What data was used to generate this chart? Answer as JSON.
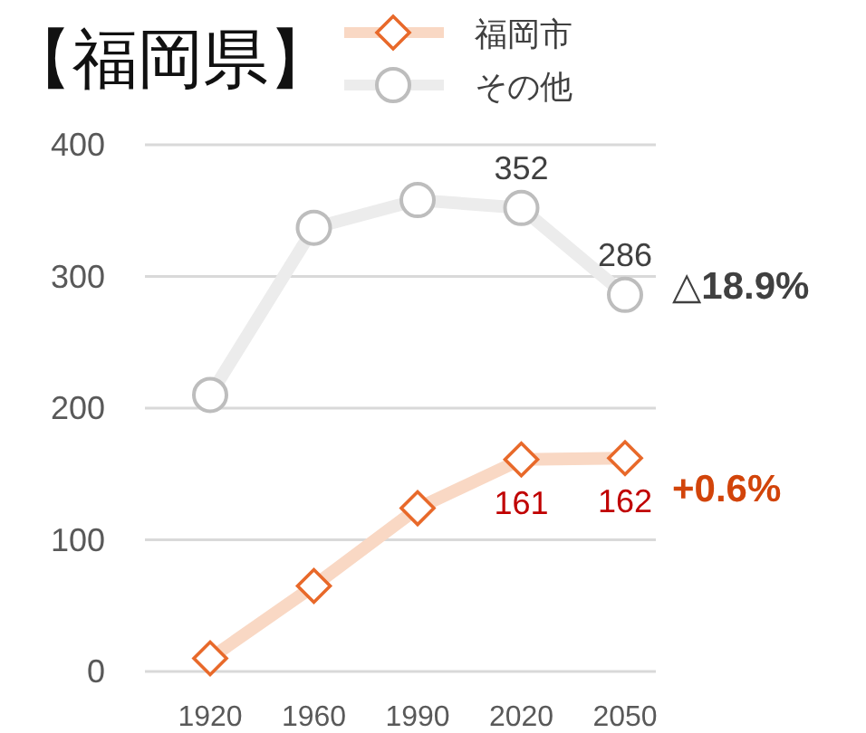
{
  "chart_data": {
    "type": "line",
    "title": "【福岡県】",
    "categories": [
      "1920",
      "1960",
      "1990",
      "2020",
      "2050"
    ],
    "series": [
      {
        "name": "福岡市",
        "color": "#e8692a",
        "values": [
          10,
          65,
          124,
          161,
          162
        ],
        "value_labels": [
          null,
          null,
          null,
          "161",
          "162"
        ],
        "marker": "diamond"
      },
      {
        "name": "その他",
        "color": "#bdbdbd",
        "values": [
          210,
          337,
          358,
          352,
          286
        ],
        "value_labels": [
          null,
          null,
          null,
          "352",
          "286"
        ],
        "marker": "circle"
      }
    ],
    "ylim": [
      0,
      400
    ],
    "yticks": [
      0,
      100,
      200,
      300,
      400
    ],
    "grid": "y",
    "legend": "top",
    "annotations": [
      {
        "text": "△18.9%",
        "x": "2050",
        "y": 286
      },
      {
        "text": "+0.6%",
        "x": "2050",
        "y": 162
      }
    ]
  }
}
